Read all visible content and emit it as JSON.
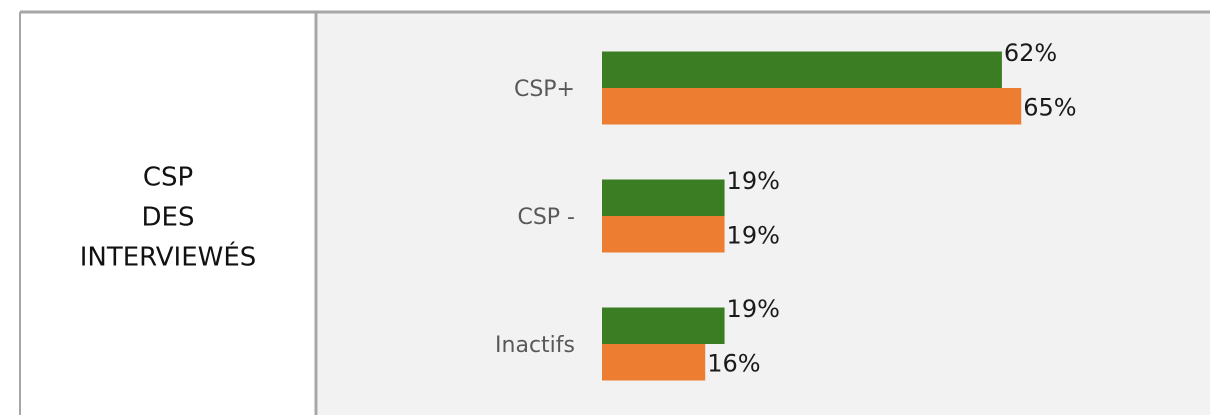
{
  "heading": [
    "CSP",
    "DES",
    "INTERVIEWÉS"
  ],
  "chart_data": {
    "type": "bar",
    "orientation": "horizontal",
    "categories": [
      "CSP+",
      "CSP -",
      "Inactifs"
    ],
    "series": [
      {
        "color": "#3a7d22",
        "values": [
          62,
          19,
          19
        ],
        "value_labels": [
          "62%",
          "19%",
          "19%"
        ]
      },
      {
        "color": "#ed7d31",
        "values": [
          65,
          19,
          16
        ],
        "value_labels": [
          "65%",
          "19%",
          "16%"
        ]
      }
    ]
  }
}
